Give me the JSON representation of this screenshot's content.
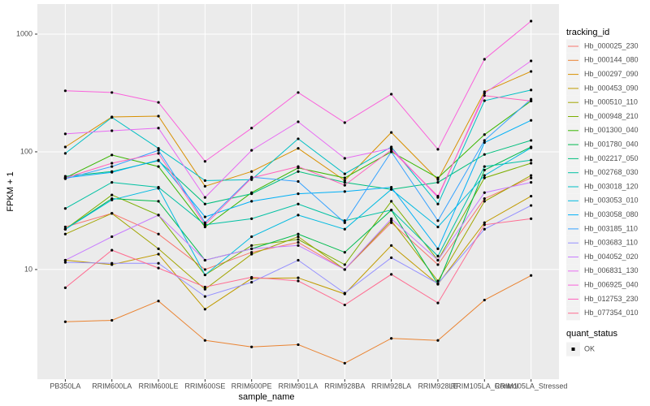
{
  "chart_data": {
    "type": "line",
    "xlabel": "sample_name",
    "ylabel": "FPKM + 1",
    "categories": [
      "PB350LA",
      "RRIM600LA",
      "RRIM600LE",
      "RRIM600SE",
      "RRIM600PE",
      "RRIM901LA",
      "RRIM928BA",
      "RRIM928LA",
      "RRIM928LE",
      "RRIM105LA_Control",
      "RRIM105LA_Stressed"
    ],
    "yscale": "log",
    "ylim": [
      1.17,
      1800
    ],
    "yticks": [
      10,
      100,
      1000
    ],
    "grid": true,
    "legend_title": "tracking_id",
    "legend_position": "right",
    "point_color": "#000000",
    "shape_legend_title": "quant_status",
    "shape_legend_labels": [
      "OK"
    ],
    "series": [
      {
        "name": "Hb_000025_230",
        "color": "#F8766D",
        "values": [
          23,
          30,
          20,
          10,
          14,
          17,
          10,
          25,
          11,
          40,
          60
        ]
      },
      {
        "name": "Hb_000144_080",
        "color": "#EA8331",
        "values": [
          3.6,
          3.7,
          5.4,
          2.5,
          2.2,
          2.3,
          1.6,
          2.6,
          2.5,
          5.5,
          8.9
        ]
      },
      {
        "name": "Hb_000297_090",
        "color": "#D89000",
        "values": [
          110,
          198,
          201,
          51,
          68,
          107,
          57,
          146,
          58,
          324,
          482
        ]
      },
      {
        "name": "Hb_000453_090",
        "color": "#C09B00",
        "values": [
          12,
          11,
          13.5,
          4.6,
          8.4,
          8.5,
          6.2,
          16,
          7.5,
          25,
          42
        ]
      },
      {
        "name": "Hb_000510_110",
        "color": "#A3A500",
        "values": [
          20,
          30,
          15,
          6.8,
          13.5,
          19,
          10,
          26,
          8,
          38,
          63
        ]
      },
      {
        "name": "Hb_000948_210",
        "color": "#7CAE00",
        "values": [
          22,
          43,
          29,
          9,
          16,
          18,
          11,
          38,
          12,
          60,
          80
        ]
      },
      {
        "name": "Hb_001300_040",
        "color": "#39B600",
        "values": [
          60,
          94,
          75,
          23,
          45,
          73,
          60,
          100,
          60,
          140,
          270
        ]
      },
      {
        "name": "Hb_001780_040",
        "color": "#00BB4E",
        "values": [
          22,
          40,
          38,
          12,
          15,
          20,
          14,
          32,
          7.5,
          70,
          110
        ]
      },
      {
        "name": "Hb_002217_050",
        "color": "#00BF7D",
        "values": [
          62,
          68,
          84,
          36,
          44,
          68,
          55,
          48,
          55,
          95,
          125
        ]
      },
      {
        "name": "Hb_002768_030",
        "color": "#00C1A3",
        "values": [
          33,
          55,
          50,
          24,
          27,
          36,
          26,
          32,
          13,
          75,
          85
        ]
      },
      {
        "name": "Hb_003018_120",
        "color": "#00BFC4",
        "values": [
          97,
          196,
          107,
          57,
          58,
          129,
          65,
          110,
          36,
          272,
          335
        ]
      },
      {
        "name": "Hb_003053_010",
        "color": "#00BAE0",
        "values": [
          22,
          39,
          49,
          9,
          19,
          29,
          22,
          48,
          23,
          63,
          108
        ]
      },
      {
        "name": "Hb_003058_080",
        "color": "#00B0F6",
        "values": [
          60,
          67,
          85,
          28,
          38,
          44,
          46,
          50,
          15,
          120,
          185
        ]
      },
      {
        "name": "Hb_003185_110",
        "color": "#35A2FF",
        "values": [
          59,
          75,
          103,
          25,
          61,
          56,
          25,
          100,
          26,
          125,
          280
        ]
      },
      {
        "name": "Hb_003683_110",
        "color": "#9590FF",
        "values": [
          11.5,
          11.3,
          11.3,
          5.9,
          7.8,
          12,
          6.3,
          12.6,
          7.6,
          22,
          35
        ]
      },
      {
        "name": "Hb_004052_020",
        "color": "#C77CFF",
        "values": [
          12,
          19,
          29,
          12,
          15,
          16,
          10,
          27,
          12,
          45,
          55
        ]
      },
      {
        "name": "Hb_006831_130",
        "color": "#E76BF3",
        "values": [
          142,
          151,
          159,
          41,
          103,
          180,
          88,
          107,
          41,
          314,
          592
        ]
      },
      {
        "name": "Hb_006925_040",
        "color": "#FA62DB",
        "values": [
          330,
          319,
          263,
          83,
          159,
          319,
          177,
          309,
          105,
          611,
          1290
        ]
      },
      {
        "name": "Hb_012753_230",
        "color": "#FF62BC",
        "values": [
          60,
          80,
          97,
          24,
          60,
          75,
          52,
          104,
          42,
          300,
          270
        ]
      },
      {
        "name": "Hb_077354_010",
        "color": "#FF6C91",
        "values": [
          7.0,
          14.6,
          10.3,
          7.1,
          8.6,
          8.0,
          5.0,
          9.1,
          5.2,
          24,
          27
        ]
      }
    ]
  }
}
